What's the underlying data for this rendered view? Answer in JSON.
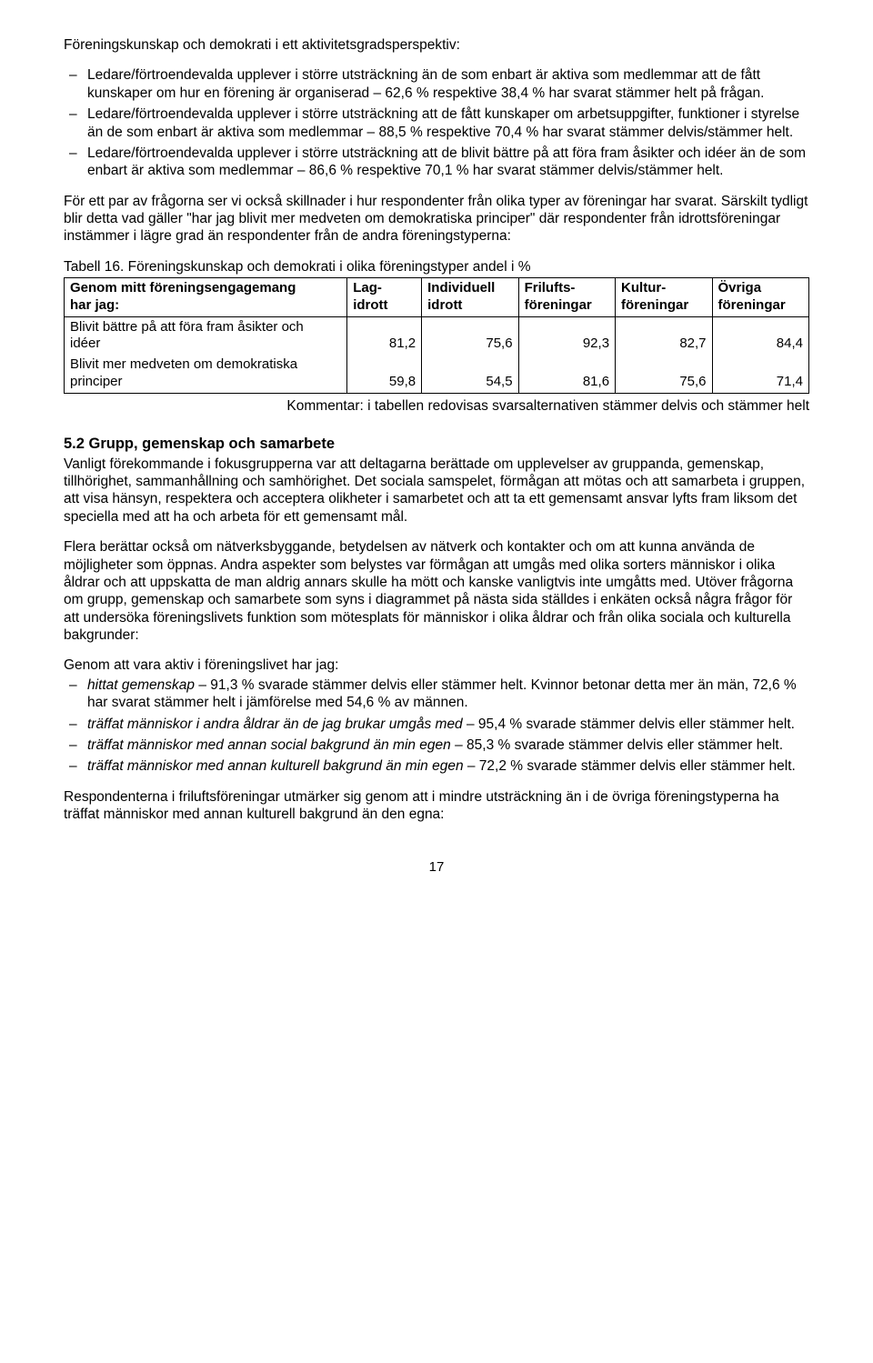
{
  "intro": "Föreningskunskap och demokrati i ett aktivitetsgradsperspektiv:",
  "intro_bullets": [
    "Ledare/förtroendevalda upplever i större utsträckning än de som enbart är aktiva som medlemmar att de fått kunskaper om hur en förening är organiserad – 62,6 % respektive 38,4 % har svarat stämmer helt på frågan.",
    "Ledare/förtroendevalda upplever i större utsträckning att de fått kunskaper om arbetsuppgifter, funktioner i styrelse än de som enbart är aktiva som medlemmar – 88,5 % respektive 70,4 % har svarat stämmer delvis/stämmer helt.",
    "Ledare/förtroendevalda upplever i större utsträckning att de blivit bättre på att föra fram åsikter och idéer än de som enbart är aktiva som medlemmar – 86,6 % respektive 70,1 % har svarat stämmer delvis/stämmer helt."
  ],
  "p2": "För ett par av frågorna ser vi också skillnader i hur respondenter från olika typer av föreningar har svarat. Särskilt tydligt blir detta vad gäller \"har jag blivit mer medveten om demokratiska principer\" där respondenter från idrottsföreningar instämmer i lägre grad än respondenter från de andra föreningstyperna:",
  "table": {
    "caption": "Tabell 16. Föreningskunskap och demokrati i olika föreningstyper andel i %",
    "head_col0_l1": "Genom mitt föreningsengagemang",
    "head_col0_l2": "har jag:",
    "columns": [
      {
        "l1": "Lag-",
        "l2": "idrott"
      },
      {
        "l1": "Individuell",
        "l2": "idrott"
      },
      {
        "l1": "Frilufts-",
        "l2": "föreningar"
      },
      {
        "l1": "Kultur-",
        "l2": "föreningar"
      },
      {
        "l1": "Övriga",
        "l2": "föreningar"
      }
    ],
    "rows": [
      {
        "l1": "Blivit bättre på att föra fram åsikter och",
        "l2": "idéer",
        "vals": [
          "81,2",
          "75,6",
          "92,3",
          "82,7",
          "84,4"
        ]
      },
      {
        "l1": "Blivit mer medveten om demokratiska",
        "l2": "principer",
        "vals": [
          "59,8",
          "54,5",
          "81,6",
          "75,6",
          "71,4"
        ]
      }
    ],
    "comment": "Kommentar: i tabellen redovisas svarsalternativen stämmer delvis och stämmer helt",
    "col_widths": [
      "38%",
      "10%",
      "13%",
      "13%",
      "13%",
      "13%"
    ]
  },
  "section": {
    "head": "5.2 Grupp, gemenskap och samarbete",
    "p1": "Vanligt förekommande i fokusgrupperna var att deltagarna berättade om upplevelser av gruppanda, gemenskap, tillhörighet, sammanhållning och samhörighet. Det sociala samspelet, förmågan att mötas och att samarbeta i gruppen, att visa hänsyn, respektera och acceptera olikheter i samarbetet och att ta ett gemensamt ansvar lyfts fram liksom det speciella med att ha och arbeta för ett gemensamt mål.",
    "p2": "Flera berättar också om nätverksbyggande, betydelsen av nätverk och kontakter och om att kunna använda de möjligheter som öppnas. Andra aspekter som belystes var förmågan att umgås med olika sorters människor i olika åldrar och att uppskatta de man aldrig annars skulle ha mött och kanske vanligtvis inte umgåtts med. Utöver frågorna om grupp, gemenskap och samarbete som syns i diagrammet på nästa sida ställdes i enkäten också några frågor för att undersöka föreningslivets funktion som mötesplats för människor i olika åldrar och från olika sociala och kulturella bakgrunder:",
    "list_intro": "Genom att vara aktiv i föreningslivet har jag:",
    "bullets": [
      {
        "em": "hittat gemenskap",
        "rest": " – 91,3 % svarade stämmer delvis eller stämmer helt. Kvinnor betonar detta mer än män, 72,6 % har svarat stämmer helt i jämförelse med 54,6 % av männen."
      },
      {
        "em": "träffat människor i andra åldrar än de jag brukar umgås med",
        "rest": " – 95,4 % svarade stämmer delvis eller stämmer helt."
      },
      {
        "em": "träffat människor med annan social bakgrund än min egen",
        "rest": " – 85,3 % svarade stämmer delvis eller stämmer helt."
      },
      {
        "em": "träffat människor med annan kulturell bakgrund än min egen",
        "rest": " – 72,2 % svarade stämmer delvis eller stämmer helt."
      }
    ],
    "p3": "Respondenterna i friluftsföreningar utmärker sig genom att i mindre utsträckning än i de övriga föreningstyperna ha träffat människor med annan kulturell bakgrund än den egna:"
  },
  "page_number": "17"
}
